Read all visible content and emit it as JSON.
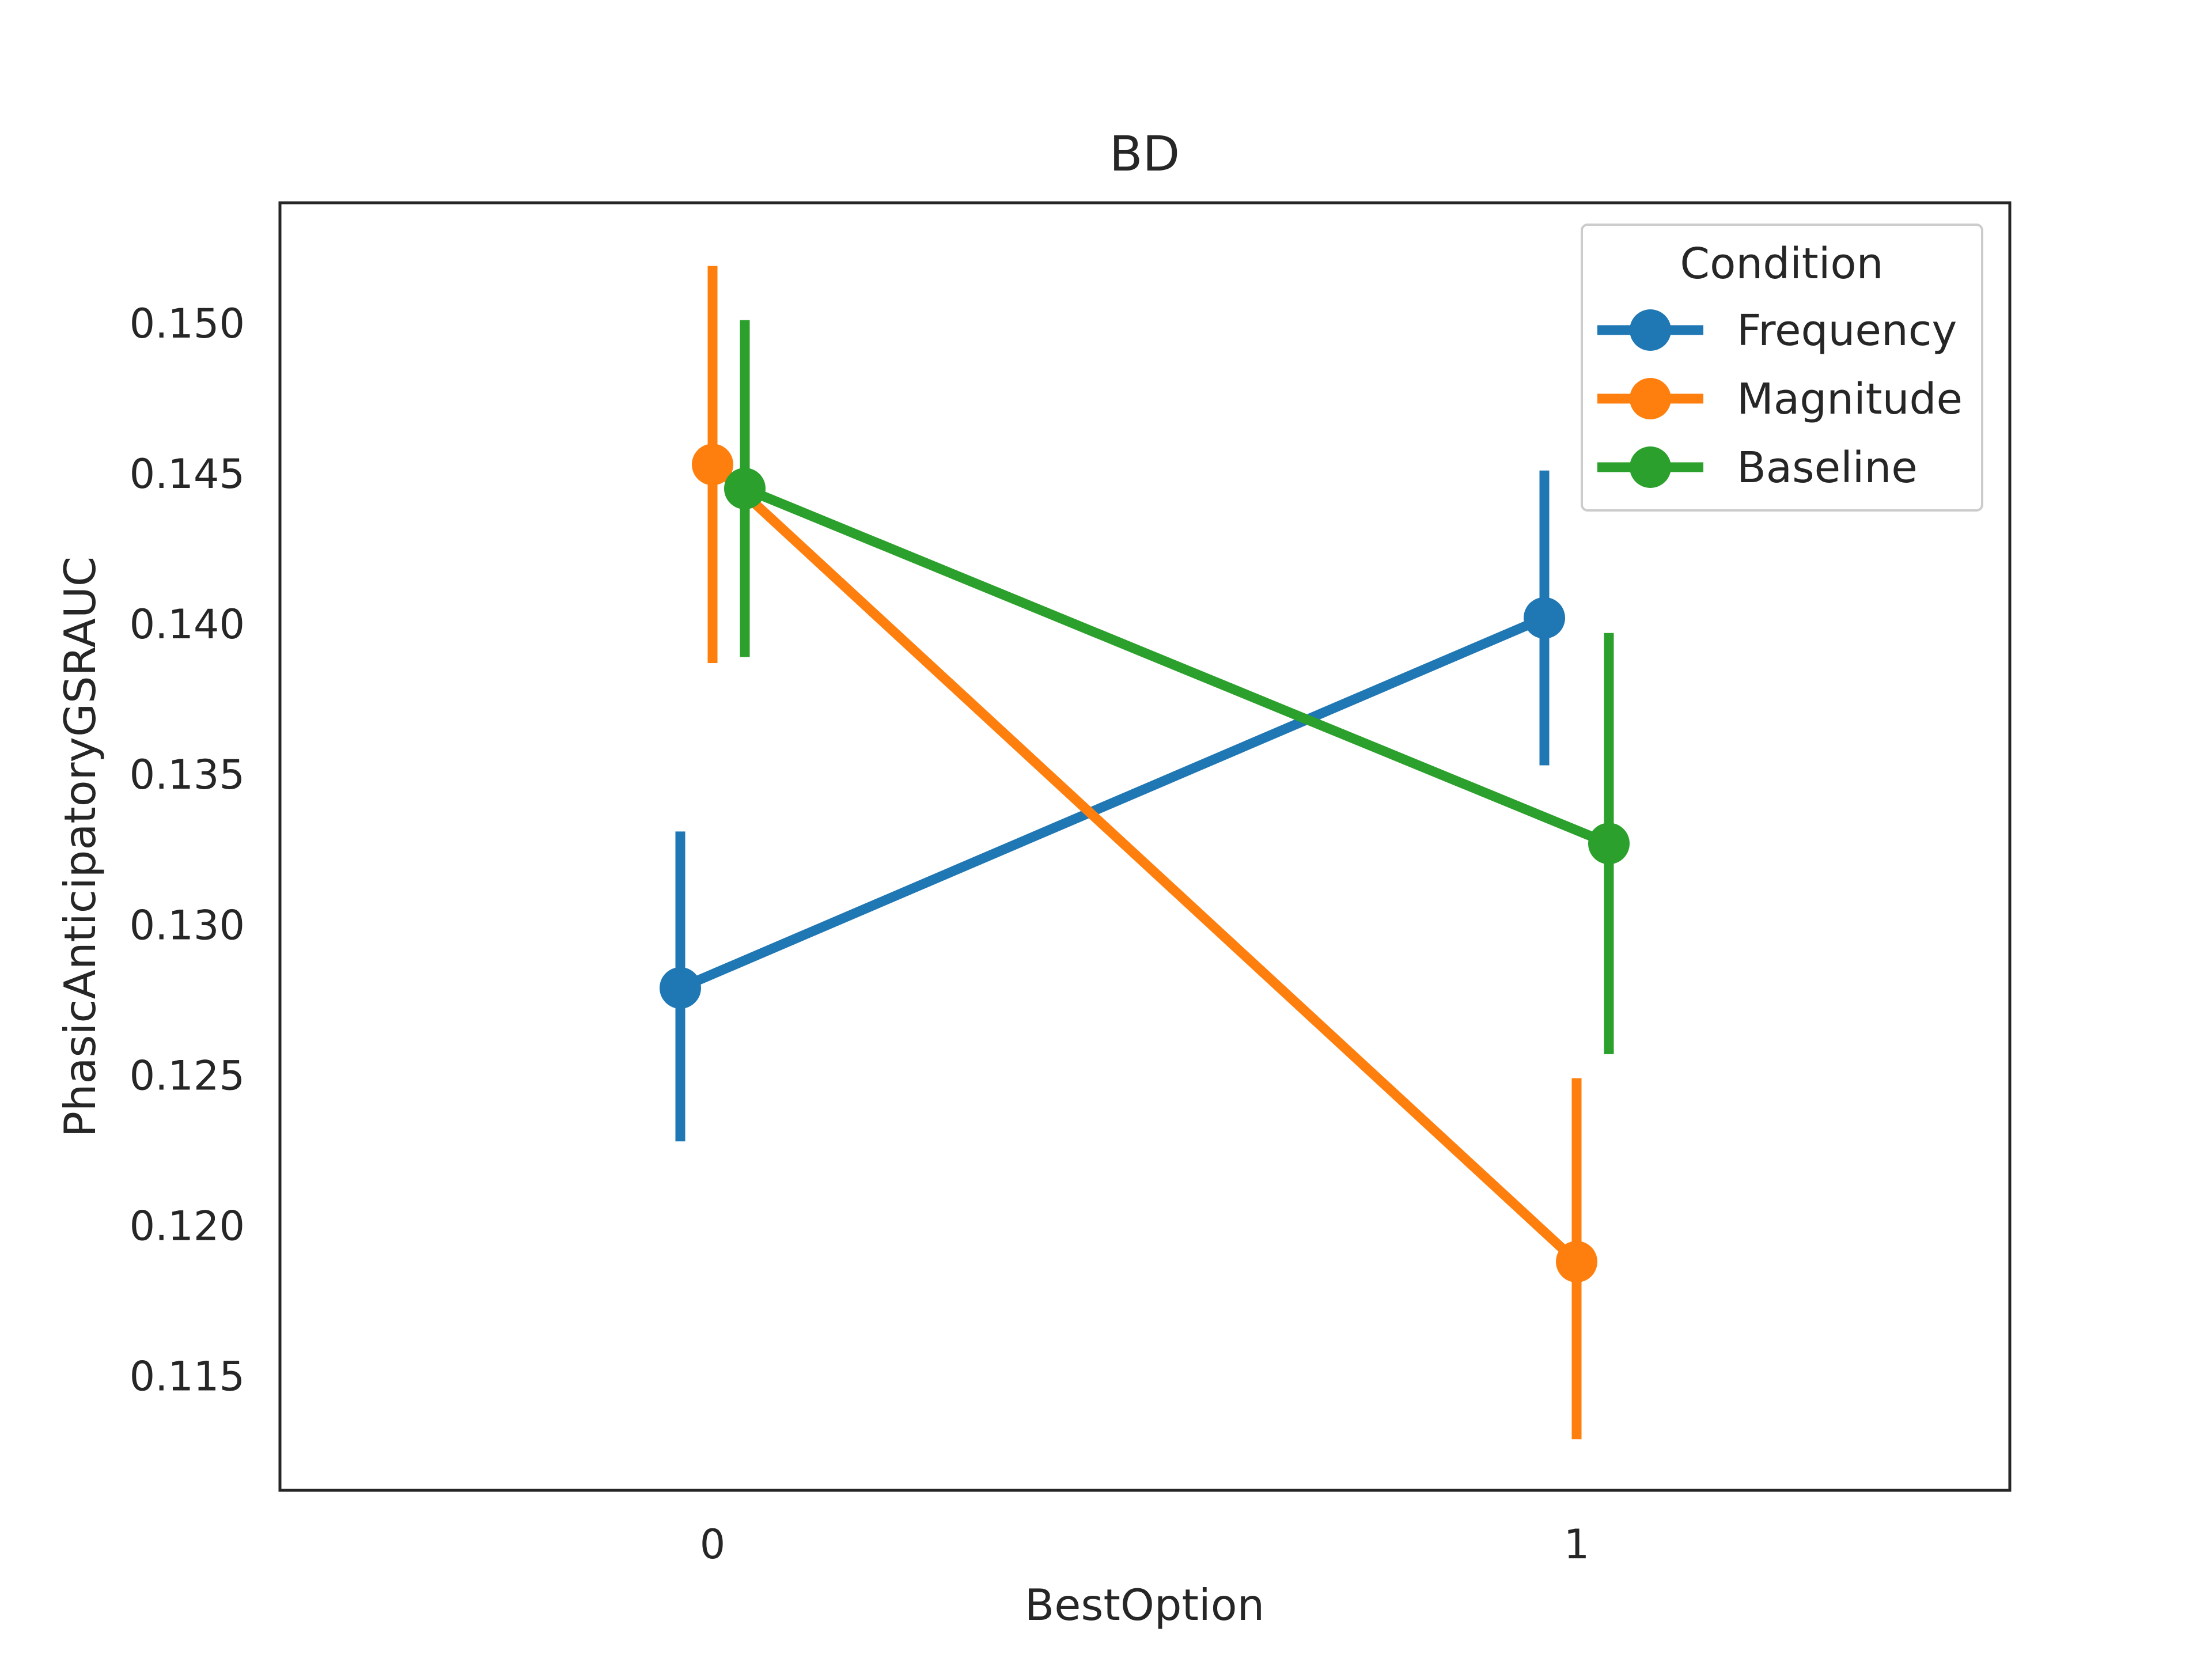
{
  "chart_data": {
    "type": "line",
    "title": "BD",
    "xlabel": "BestOption",
    "ylabel": "PhasicAnticipatoryGSRAUC",
    "categories": [
      "0",
      "1"
    ],
    "ylim": [
      0.1112,
      0.154
    ],
    "yticks": [
      0.115,
      0.12,
      0.125,
      0.13,
      0.135,
      0.14,
      0.145,
      0.15
    ],
    "ytick_labels": [
      "0.115",
      "0.120",
      "0.125",
      "0.130",
      "0.135",
      "0.140",
      "0.145",
      "0.150"
    ],
    "grid": false,
    "legend": {
      "title": "Condition",
      "placement": "top-right"
    },
    "series": [
      {
        "name": "Frequency",
        "color": "#1f77b4",
        "values": [
          0.1279,
          0.1402
        ],
        "ci_low": [
          0.1228,
          0.1353
        ],
        "ci_high": [
          0.1331,
          0.1451
        ]
      },
      {
        "name": "Magnitude",
        "color": "#ff7f0e",
        "values": [
          0.1453,
          0.1188
        ],
        "ci_low": [
          0.1387,
          0.1129
        ],
        "ci_high": [
          0.1519,
          0.1249
        ]
      },
      {
        "name": "Baseline",
        "color": "#2ca02c",
        "values": [
          0.1445,
          0.1327
        ],
        "ci_low": [
          0.1389,
          0.1257
        ],
        "ci_high": [
          0.1501,
          0.1397
        ]
      }
    ]
  }
}
